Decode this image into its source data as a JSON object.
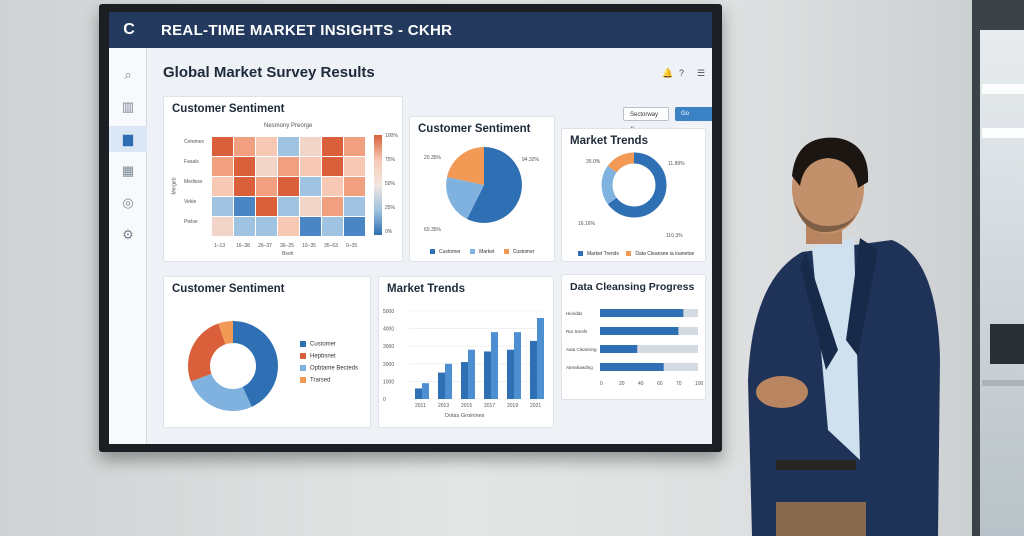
{
  "app": {
    "title": "REAL-TIME MARKET INSIGHTS - CKHR",
    "logo": "C"
  },
  "page": {
    "title": "Global Market Survey Results"
  },
  "sidebar": {
    "icons": [
      "search-icon",
      "bar-chart-icon",
      "analytics-icon",
      "calendar-icon",
      "target-icon",
      "settings-icon"
    ]
  },
  "header": {
    "bell": "🔔",
    "help": "?",
    "menu": "☰"
  },
  "toolbar": {
    "select_label": "Sectorway ∨",
    "button_label": "Go Strategie"
  },
  "heatmap_card": {
    "title": "Customer Sentiment",
    "chart_title": "Nesmony Preorge",
    "rows": [
      "Cetomex",
      "Fasals",
      "Medisss",
      "Vekie",
      "Pielse"
    ],
    "y_axis_label": "Mergeb",
    "cols": [
      "1–13",
      "16–38",
      "26–37",
      "36–25",
      "10–35",
      "35–63",
      "0–35"
    ],
    "x_axis_label": "Bsoh",
    "scale": [
      "100%",
      "75%",
      "50%",
      "25%",
      "0%"
    ],
    "colors": [
      "#d9603b",
      "#f0a07f",
      "#f7c9b4",
      "#f2d4c8",
      "#9fc3e0",
      "#4a86c5"
    ]
  },
  "pie_card": {
    "title": "Customer Sentiment",
    "labels": [
      "20.35%",
      "94.32%",
      "60.35%"
    ],
    "legend": [
      "Customer",
      "Market",
      "Customer"
    ]
  },
  "donut1_card": {
    "title": "Market Trends",
    "labels": [
      "35.0%",
      "11.89%",
      "16.16%",
      "110.3%"
    ],
    "legend": [
      "Market Trends",
      "Data Cleansee ia ioanetoe"
    ]
  },
  "donut2_card": {
    "title": "Customer Sentiment",
    "legend": [
      "Customer",
      "Hepbsnet",
      "Opbtame Becteds",
      "Trarsed"
    ]
  },
  "bar_card": {
    "title": "Market Trends",
    "y_ticks": [
      "5000",
      "4000",
      "3000",
      "2000",
      "1000",
      "0"
    ],
    "x_ticks": [
      "2011",
      "2013",
      "2015",
      "2017",
      "2019",
      "2021"
    ],
    "x_axis_label": "Dotas Groinines"
  },
  "progress_card": {
    "title": "Data Cleansing Progress",
    "rows": [
      "Hioriddx",
      "Rar Sresfs",
      "Aata Cleansing",
      "Aterahaeding"
    ],
    "x_ticks": [
      "0",
      "20",
      "40",
      "60",
      "70",
      "100"
    ]
  },
  "chart_data": [
    {
      "type": "bar",
      "title": "Market Trends",
      "categories": [
        "2011",
        "2013",
        "2015",
        "2017",
        "2019",
        "2021"
      ],
      "series": [
        {
          "values": [
            600,
            1500,
            2100,
            2700,
            2800,
            3300
          ]
        },
        {
          "values": [
            900,
            2000,
            2800,
            3800,
            3800,
            4600
          ]
        }
      ],
      "ylim": [
        0,
        5000
      ]
    },
    {
      "type": "bar",
      "title": "Data Cleansing Progress",
      "categories": [
        "Hioriddx",
        "Rar Sresfs",
        "Aata Cleansing",
        "Aterahaeding"
      ],
      "values": [
        85,
        80,
        38,
        65
      ],
      "xlim": [
        0,
        100
      ]
    },
    {
      "type": "pie",
      "title": "Customer Sentiment",
      "values": [
        60,
        25,
        15
      ]
    }
  ]
}
